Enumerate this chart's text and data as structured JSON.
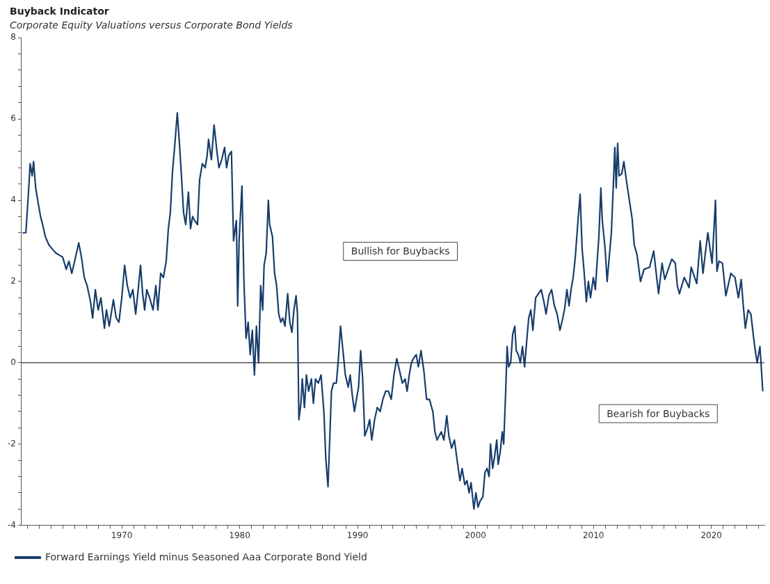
{
  "chart_data": {
    "type": "line",
    "title": "Buyback Indicator",
    "subtitle": "Corporate Equity Valuations versus Corporate Bond Yields",
    "annotations": [
      "Bullish for Buybacks",
      "Bearish for Buybacks"
    ],
    "xlim": [
      1961.5,
      2024.5
    ],
    "xticks": [
      {
        "value": 1962,
        "label": null
      },
      {
        "value": 1963,
        "label": null
      },
      {
        "value": 1964,
        "label": null
      },
      {
        "value": 1965,
        "label": null
      },
      {
        "value": 1966,
        "label": null
      },
      {
        "value": 1967,
        "label": null
      },
      {
        "value": 1968,
        "label": null
      },
      {
        "value": 1969,
        "label": null
      },
      1970,
      {
        "value": 1971,
        "label": null
      },
      {
        "value": 1972,
        "label": null
      },
      {
        "value": 1973,
        "label": null
      },
      {
        "value": 1974,
        "label": null
      },
      {
        "value": 1975,
        "label": null
      },
      {
        "value": 1976,
        "label": null
      },
      {
        "value": 1977,
        "label": null
      },
      {
        "value": 1978,
        "label": null
      },
      {
        "value": 1979,
        "label": null
      },
      1980,
      {
        "value": 1981,
        "label": null
      },
      {
        "value": 1982,
        "label": null
      },
      {
        "value": 1983,
        "label": null
      },
      {
        "value": 1984,
        "label": null
      },
      {
        "value": 1985,
        "label": null
      },
      {
        "value": 1986,
        "label": null
      },
      {
        "value": 1987,
        "label": null
      },
      {
        "value": 1988,
        "label": null
      },
      {
        "value": 1989,
        "label": null
      },
      1990,
      {
        "value": 1991,
        "label": null
      },
      {
        "value": 1992,
        "label": null
      },
      {
        "value": 1993,
        "label": null
      },
      {
        "value": 1994,
        "label": null
      },
      {
        "value": 1995,
        "label": null
      },
      {
        "value": 1996,
        "label": null
      },
      {
        "value": 1997,
        "label": null
      },
      {
        "value": 1998,
        "label": null
      },
      {
        "value": 1999,
        "label": null
      },
      2000,
      {
        "value": 2001,
        "label": null
      },
      {
        "value": 2002,
        "label": null
      },
      {
        "value": 2003,
        "label": null
      },
      {
        "value": 2004,
        "label": null
      },
      {
        "value": 2005,
        "label": null
      },
      {
        "value": 2006,
        "label": null
      },
      {
        "value": 2007,
        "label": null
      },
      {
        "value": 2008,
        "label": null
      },
      {
        "value": 2009,
        "label": null
      },
      2010,
      {
        "value": 2011,
        "label": null
      },
      {
        "value": 2012,
        "label": null
      },
      {
        "value": 2013,
        "label": null
      },
      {
        "value": 2014,
        "label": null
      },
      {
        "value": 2015,
        "label": null
      },
      {
        "value": 2016,
        "label": null
      },
      {
        "value": 2017,
        "label": null
      },
      {
        "value": 2018,
        "label": null
      },
      {
        "value": 2019,
        "label": null
      },
      2020,
      {
        "value": 2021,
        "label": null
      },
      {
        "value": 2022,
        "label": null
      },
      {
        "value": 2023,
        "label": null
      },
      {
        "value": 2024,
        "label": null
      }
    ],
    "ylim": [
      -4,
      8
    ],
    "yticks": [
      -4,
      {
        "value": -3.6,
        "label": null
      },
      {
        "value": -3.2,
        "label": null
      },
      {
        "value": -2.8,
        "label": null
      },
      {
        "value": -2.4,
        "label": null
      },
      -2,
      {
        "value": -1.6,
        "label": null
      },
      {
        "value": -1.2,
        "label": null
      },
      {
        "value": -0.8,
        "label": null
      },
      {
        "value": -0.4,
        "label": null
      },
      0,
      {
        "value": 0.4,
        "label": null
      },
      {
        "value": 0.8,
        "label": null
      },
      {
        "value": 1.2,
        "label": null
      },
      {
        "value": 1.6,
        "label": null
      },
      2,
      {
        "value": 2.4,
        "label": null
      },
      {
        "value": 2.8,
        "label": null
      },
      {
        "value": 3.2,
        "label": null
      },
      {
        "value": 3.6,
        "label": null
      },
      4,
      {
        "value": 4.4,
        "label": null
      },
      {
        "value": 4.8,
        "label": null
      },
      {
        "value": 5.2,
        "label": null
      },
      {
        "value": 5.6,
        "label": null
      },
      6,
      {
        "value": 6.4,
        "label": null
      },
      {
        "value": 6.8,
        "label": null
      },
      {
        "value": 7.2,
        "label": null
      },
      {
        "value": 7.6,
        "label": null
      },
      8
    ],
    "ref_lines": [
      {
        "axis": "y",
        "value": 0,
        "color": "#000000"
      }
    ],
    "legend": "bottom",
    "marker": "none",
    "line_style": "solid",
    "series": [
      {
        "name": "Forward Earnings Yield minus Seasoned Aaa Corporate Bond Yield",
        "color": "#173d6b",
        "x": [
          1961.58,
          1961.87,
          1962.11,
          1962.23,
          1962.4,
          1962.52,
          1962.7,
          1962.93,
          1963.11,
          1963.29,
          1963.52,
          1963.82,
          1964.11,
          1964.41,
          1964.7,
          1964.99,
          1965.29,
          1965.52,
          1965.76,
          1966.0,
          1966.35,
          1966.58,
          1966.82,
          1967.06,
          1967.35,
          1967.53,
          1967.76,
          1968.0,
          1968.23,
          1968.53,
          1968.7,
          1968.94,
          1969.29,
          1969.53,
          1969.76,
          1970.0,
          1970.24,
          1970.47,
          1970.71,
          1970.94,
          1971.18,
          1971.41,
          1971.59,
          1971.77,
          1971.94,
          1972.12,
          1972.36,
          1972.65,
          1972.89,
          1973.06,
          1973.3,
          1973.53,
          1973.77,
          1973.95,
          1974.12,
          1974.3,
          1974.48,
          1974.71,
          1974.89,
          1975.06,
          1975.24,
          1975.42,
          1975.65,
          1975.83,
          1976.01,
          1976.18,
          1976.42,
          1976.6,
          1976.83,
          1977.07,
          1977.24,
          1977.36,
          1977.6,
          1977.83,
          1978.07,
          1978.24,
          1978.48,
          1978.72,
          1978.89,
          1979.07,
          1979.3,
          1979.48,
          1979.72,
          1979.83,
          1979.95,
          1980.19,
          1980.36,
          1980.54,
          1980.72,
          1980.89,
          1981.07,
          1981.25,
          1981.42,
          1981.6,
          1981.78,
          1981.95,
          1982.07,
          1982.25,
          1982.43,
          1982.54,
          1982.78,
          1982.96,
          1983.13,
          1983.31,
          1983.49,
          1983.66,
          1983.84,
          1984.07,
          1984.25,
          1984.43,
          1984.6,
          1984.78,
          1984.9,
          1985.02,
          1985.19,
          1985.31,
          1985.49,
          1985.66,
          1985.84,
          1986.08,
          1986.25,
          1986.43,
          1986.67,
          1986.9,
          1987.14,
          1987.31,
          1987.49,
          1987.67,
          1987.78,
          1987.96,
          1988.2,
          1988.37,
          1988.55,
          1988.79,
          1988.96,
          1989.2,
          1989.37,
          1989.55,
          1989.73,
          1989.9,
          1990.08,
          1990.26,
          1990.43,
          1990.61,
          1990.85,
          1991.02,
          1991.2,
          1991.44,
          1991.67,
          1991.91,
          1992.14,
          1992.38,
          1992.61,
          1992.85,
          1993.08,
          1993.32,
          1993.56,
          1993.79,
          1994.03,
          1994.2,
          1994.38,
          1994.56,
          1994.73,
          1994.97,
          1995.15,
          1995.38,
          1995.62,
          1995.85,
          1996.09,
          1996.38,
          1996.56,
          1996.74,
          1997.09,
          1997.32,
          1997.56,
          1997.74,
          1997.97,
          1998.21,
          1998.44,
          1998.68,
          1998.86,
          1999.09,
          1999.27,
          1999.45,
          1999.62,
          1999.86,
          2000.03,
          2000.21,
          2000.39,
          2000.62,
          2000.8,
          2000.98,
          2001.15,
          2001.27,
          2001.45,
          2001.62,
          2001.8,
          2001.92,
          2002.09,
          2002.27,
          2002.39,
          2002.57,
          2002.68,
          2002.8,
          2002.98,
          2003.15,
          2003.33,
          2003.45,
          2003.63,
          2003.8,
          2003.98,
          2004.16,
          2004.33,
          2004.51,
          2004.69,
          2004.86,
          2005.1,
          2005.33,
          2005.57,
          2005.8,
          2005.98,
          2006.22,
          2006.45,
          2006.69,
          2006.92,
          2007.16,
          2007.4,
          2007.57,
          2007.75,
          2007.93,
          2008.1,
          2008.28,
          2008.46,
          2008.69,
          2008.87,
          2009.04,
          2009.22,
          2009.4,
          2009.57,
          2009.75,
          2009.99,
          2010.16,
          2010.34,
          2010.46,
          2010.63,
          2010.75,
          2010.99,
          2011.16,
          2011.34,
          2011.52,
          2011.69,
          2011.81,
          2011.93,
          2012.05,
          2012.17,
          2012.4,
          2012.58,
          2012.81,
          2013.28,
          2013.46,
          2013.7,
          2013.99,
          2014.29,
          2014.76,
          2015.11,
          2015.52,
          2015.82,
          2016.05,
          2016.64,
          2016.94,
          2017.11,
          2017.29,
          2017.7,
          2018.11,
          2018.29,
          2018.76,
          2019.05,
          2019.29,
          2019.47,
          2019.7,
          2020.06,
          2020.35,
          2020.47,
          2020.65,
          2020.94,
          2021.23,
          2021.65,
          2022.0,
          2022.29,
          2022.53,
          2022.71,
          2022.88,
          2023.12,
          2023.35,
          2023.65,
          2023.88,
          2024.12,
          2024.36
        ],
        "values": [
          3.2,
          3.2,
          4.3,
          4.9,
          4.6,
          4.95,
          4.3,
          3.9,
          3.6,
          3.4,
          3.1,
          2.9,
          2.8,
          2.7,
          2.65,
          2.6,
          2.3,
          2.5,
          2.2,
          2.5,
          2.95,
          2.6,
          2.1,
          1.9,
          1.5,
          1.1,
          1.8,
          1.3,
          1.6,
          0.85,
          1.3,
          0.9,
          1.55,
          1.1,
          1.0,
          1.6,
          2.4,
          1.9,
          1.6,
          1.8,
          1.2,
          1.85,
          2.4,
          1.7,
          1.3,
          1.8,
          1.6,
          1.3,
          1.9,
          1.3,
          2.2,
          2.1,
          2.5,
          3.3,
          3.7,
          4.7,
          5.3,
          6.15,
          5.4,
          4.6,
          3.7,
          3.4,
          4.2,
          3.3,
          3.6,
          3.5,
          3.4,
          4.5,
          4.9,
          4.8,
          5.1,
          5.5,
          5.0,
          5.85,
          5.2,
          4.8,
          5.0,
          5.3,
          4.8,
          5.1,
          5.2,
          3.0,
          3.5,
          1.4,
          3.0,
          4.35,
          2.0,
          0.6,
          1.0,
          0.2,
          0.8,
          -0.3,
          0.9,
          0.0,
          1.9,
          1.3,
          2.4,
          2.7,
          4.0,
          3.4,
          3.1,
          2.2,
          1.9,
          1.2,
          1.0,
          1.1,
          0.9,
          1.7,
          1.0,
          0.75,
          1.3,
          1.65,
          1.2,
          -1.4,
          -1.0,
          -0.4,
          -1.1,
          -0.3,
          -0.7,
          -0.4,
          -1.0,
          -0.4,
          -0.5,
          -0.3,
          -1.2,
          -2.4,
          -3.05,
          -1.6,
          -0.7,
          -0.5,
          -0.5,
          0.1,
          0.9,
          0.2,
          -0.3,
          -0.6,
          -0.3,
          -0.8,
          -1.2,
          -0.9,
          -0.6,
          0.3,
          -0.4,
          -1.8,
          -1.6,
          -1.4,
          -1.9,
          -1.4,
          -1.1,
          -1.2,
          -0.9,
          -0.7,
          -0.7,
          -0.9,
          -0.3,
          0.1,
          -0.2,
          -0.5,
          -0.4,
          -0.7,
          -0.3,
          0.0,
          0.1,
          0.2,
          -0.1,
          0.3,
          -0.2,
          -0.9,
          -0.9,
          -1.2,
          -1.7,
          -1.9,
          -1.7,
          -1.9,
          -1.3,
          -1.8,
          -2.1,
          -1.9,
          -2.4,
          -2.9,
          -2.6,
          -3.0,
          -2.9,
          -3.2,
          -2.95,
          -3.6,
          -3.2,
          -3.55,
          -3.4,
          -3.3,
          -2.7,
          -2.6,
          -2.8,
          -2.0,
          -2.6,
          -2.3,
          -1.9,
          -2.5,
          -2.2,
          -1.7,
          -2.0,
          -0.6,
          0.4,
          -0.1,
          0.0,
          0.7,
          0.9,
          0.3,
          0.2,
          0.0,
          0.4,
          -0.1,
          0.5,
          1.1,
          1.3,
          0.8,
          1.6,
          1.7,
          1.8,
          1.5,
          1.2,
          1.65,
          1.8,
          1.4,
          1.2,
          0.8,
          1.1,
          1.35,
          1.8,
          1.4,
          1.8,
          2.1,
          2.6,
          3.5,
          4.15,
          2.8,
          2.2,
          1.5,
          2.0,
          1.6,
          2.1,
          1.8,
          2.6,
          3.1,
          4.3,
          3.5,
          2.8,
          2.0,
          2.6,
          3.2,
          4.4,
          5.3,
          4.3,
          5.4,
          4.6,
          4.65,
          4.95,
          4.45,
          3.55,
          2.9,
          2.65,
          2.0,
          2.3,
          2.35,
          2.75,
          1.7,
          2.45,
          2.05,
          2.55,
          2.45,
          1.9,
          1.7,
          2.1,
          1.85,
          2.35,
          1.95,
          3.0,
          2.2,
          2.65,
          3.2,
          2.45,
          4.0,
          2.25,
          2.5,
          2.45,
          1.65,
          2.2,
          2.1,
          1.6,
          2.05,
          1.4,
          0.85,
          1.3,
          1.2,
          0.45,
          0.0,
          0.4,
          -0.7
        ]
      }
    ]
  }
}
